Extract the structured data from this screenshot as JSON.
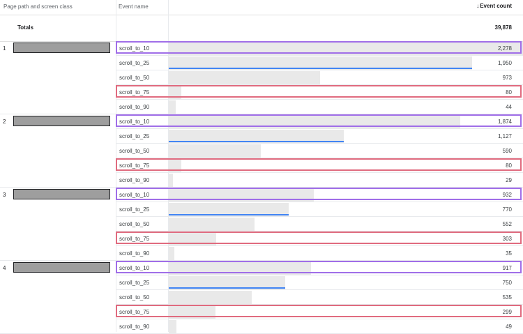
{
  "header": {
    "col_page": "Page path and screen class",
    "col_event": "Event name",
    "col_count": "Event count",
    "sort_icon": "arrow-down-icon"
  },
  "totals": {
    "label": "Totals",
    "value": "39,878"
  },
  "colors": {
    "highlight_purple": "#a06ee8",
    "highlight_red": "#e06b7f",
    "bar": "#e9e9e9",
    "underline": "#4285f4"
  },
  "groups": [
    {
      "rank": "1",
      "rows": [
        {
          "event": "scroll_to_10",
          "count": "2,278",
          "num": 2278,
          "highlight": "purple"
        },
        {
          "event": "scroll_to_25",
          "count": "1,950",
          "num": 1950,
          "underline": true
        },
        {
          "event": "scroll_to_50",
          "count": "973",
          "num": 973
        },
        {
          "event": "scroll_to_75",
          "count": "80",
          "num": 80,
          "highlight": "red"
        },
        {
          "event": "scroll_to_90",
          "count": "44",
          "num": 44
        }
      ]
    },
    {
      "rank": "2",
      "rows": [
        {
          "event": "scroll_to_10",
          "count": "1,874",
          "num": 1874,
          "highlight": "purple"
        },
        {
          "event": "scroll_to_25",
          "count": "1,127",
          "num": 1127,
          "underline": true
        },
        {
          "event": "scroll_to_50",
          "count": "590",
          "num": 590
        },
        {
          "event": "scroll_to_75",
          "count": "80",
          "num": 80,
          "highlight": "red"
        },
        {
          "event": "scroll_to_90",
          "count": "29",
          "num": 29
        }
      ]
    },
    {
      "rank": "3",
      "rows": [
        {
          "event": "scroll_to_10",
          "count": "932",
          "num": 932,
          "highlight": "purple"
        },
        {
          "event": "scroll_to_25",
          "count": "770",
          "num": 770,
          "underline": true
        },
        {
          "event": "scroll_to_50",
          "count": "552",
          "num": 552
        },
        {
          "event": "scroll_to_75",
          "count": "303",
          "num": 303,
          "highlight": "red"
        },
        {
          "event": "scroll_to_90",
          "count": "35",
          "num": 35
        }
      ]
    },
    {
      "rank": "4",
      "rows": [
        {
          "event": "scroll_to_10",
          "count": "917",
          "num": 917,
          "highlight": "purple"
        },
        {
          "event": "scroll_to_25",
          "count": "750",
          "num": 750,
          "underline": true
        },
        {
          "event": "scroll_to_50",
          "count": "535",
          "num": 535
        },
        {
          "event": "scroll_to_75",
          "count": "299",
          "num": 299,
          "highlight": "red"
        },
        {
          "event": "scroll_to_90",
          "count": "49",
          "num": 49
        }
      ]
    }
  ]
}
